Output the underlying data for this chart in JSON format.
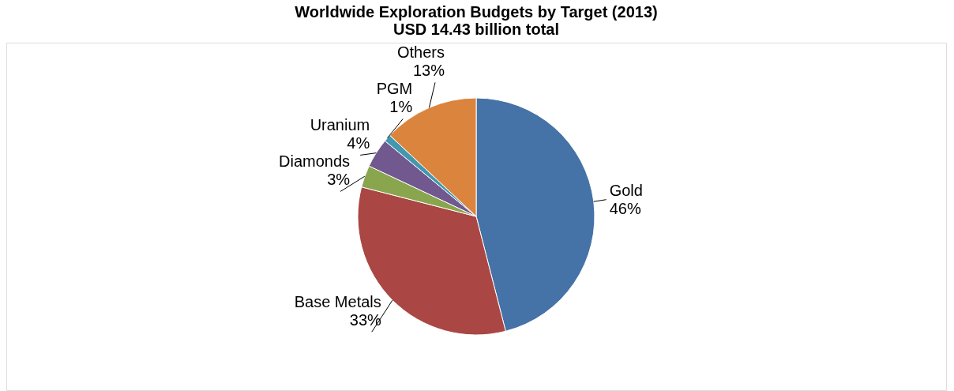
{
  "chart_data": {
    "type": "pie",
    "title": "Worldwide Exploration Budgets by Target (2013)",
    "subtitle": "USD 14.43 billion total",
    "categories": [
      "Gold",
      "Base Metals",
      "Diamonds",
      "Uranium",
      "PGM",
      "Others"
    ],
    "values": [
      46,
      33,
      3,
      4,
      1,
      13
    ],
    "value_labels": [
      "46%",
      "33%",
      "3%",
      "4%",
      "1%",
      "13%"
    ],
    "colors": [
      "#4572a7",
      "#aa4643",
      "#89a54e",
      "#71588f",
      "#4198af",
      "#db843d"
    ],
    "legend": false
  }
}
